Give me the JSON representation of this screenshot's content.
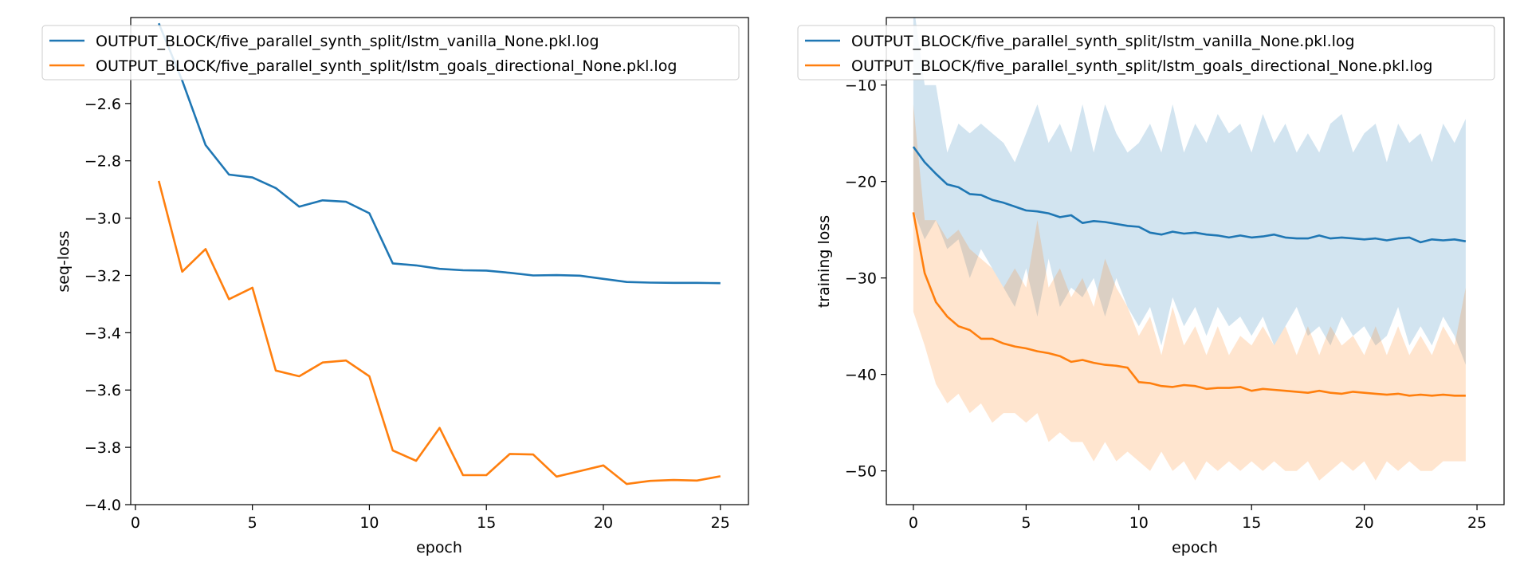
{
  "colors": {
    "series0": "#1f77b4",
    "series1": "#ff7f0e",
    "band0": "#1f77b4",
    "band1": "#ff7f0e"
  },
  "chart_data": [
    {
      "type": "line",
      "xlabel": "epoch",
      "ylabel": "seq-loss",
      "xlim": [
        -0.2,
        26.2
      ],
      "ylim": [
        -4.0,
        -2.3
      ],
      "xticks": [
        0,
        5,
        10,
        15,
        20,
        25
      ],
      "yticks": [
        -4.0,
        -3.8,
        -3.6,
        -3.4,
        -3.2,
        -3.0,
        -2.8,
        -2.6
      ],
      "ytick_labels": [
        "−4.0",
        "−3.8",
        "−3.6",
        "−3.4",
        "−3.2",
        "−3.0",
        "−2.8",
        "−2.6"
      ],
      "legend_position": "top",
      "series": [
        {
          "name": "OUTPUT_BLOCK/five_parallel_synth_split/lstm_vanilla_None.pkl.log",
          "x": [
            1,
            2,
            3,
            4,
            5,
            6,
            7,
            8,
            9,
            10,
            11,
            12,
            13,
            14,
            15,
            16,
            17,
            18,
            19,
            20,
            21,
            22,
            23,
            24,
            25
          ],
          "values": [
            -2.32,
            -2.52,
            -2.745,
            -2.848,
            -2.858,
            -2.895,
            -2.96,
            -2.938,
            -2.943,
            -2.983,
            -3.158,
            -3.165,
            -3.177,
            -3.182,
            -3.183,
            -3.191,
            -3.2,
            -3.199,
            -3.201,
            -3.212,
            -3.223,
            -3.225,
            -3.226,
            -3.226,
            -3.227
          ]
        },
        {
          "name": "OUTPUT_BLOCK/five_parallel_synth_split/lstm_goals_directional_None.pkl.log",
          "x": [
            1,
            2,
            3,
            4,
            5,
            6,
            7,
            8,
            9,
            10,
            11,
            12,
            13,
            14,
            15,
            16,
            17,
            18,
            19,
            20,
            21,
            22,
            23,
            24,
            25
          ],
          "values": [
            -2.87,
            -3.187,
            -3.108,
            -3.283,
            -3.243,
            -3.532,
            -3.552,
            -3.504,
            -3.497,
            -3.552,
            -3.811,
            -3.847,
            -3.732,
            -3.897,
            -3.897,
            -3.823,
            -3.825,
            -3.902,
            -3.883,
            -3.863,
            -3.928,
            -3.917,
            -3.914,
            -3.916,
            -3.901
          ]
        }
      ]
    },
    {
      "type": "line",
      "xlabel": "epoch",
      "ylabel": "training loss",
      "xlim": [
        -1.2,
        26.2
      ],
      "ylim": [
        -53.5,
        -3.0
      ],
      "xticks": [
        0,
        5,
        10,
        15,
        20,
        25
      ],
      "yticks": [
        -50,
        -40,
        -30,
        -20,
        -10
      ],
      "ytick_labels": [
        "−50",
        "−40",
        "−30",
        "−20",
        "−10"
      ],
      "legend_position": "top",
      "series": [
        {
          "name": "OUTPUT_BLOCK/five_parallel_synth_split/lstm_vanilla_None.pkl.log",
          "x": [
            0,
            0.5,
            1,
            1.5,
            2,
            2.5,
            3,
            3.5,
            4,
            4.5,
            5,
            5.5,
            6,
            6.5,
            7,
            7.5,
            8,
            8.5,
            9,
            9.5,
            10,
            10.5,
            11,
            11.5,
            12,
            12.5,
            13,
            13.5,
            14,
            14.5,
            15,
            15.5,
            16,
            16.5,
            17,
            17.5,
            18,
            18.5,
            19,
            19.5,
            20,
            20.5,
            21,
            21.5,
            22,
            22.5,
            23,
            23.5,
            24,
            24.5
          ],
          "values": [
            -16.4,
            -18,
            -19.2,
            -20.3,
            -20.6,
            -21.3,
            -21.4,
            -21.9,
            -22.2,
            -22.6,
            -23.0,
            -23.1,
            -23.3,
            -23.7,
            -23.5,
            -24.3,
            -24.1,
            -24.2,
            -24.4,
            -24.6,
            -24.7,
            -25.3,
            -25.5,
            -25.2,
            -25.4,
            -25.3,
            -25.5,
            -25.6,
            -25.8,
            -25.6,
            -25.8,
            -25.7,
            -25.5,
            -25.8,
            -25.9,
            -25.9,
            -25.6,
            -25.9,
            -25.8,
            -25.9,
            -26.0,
            -25.9,
            -26.1,
            -25.9,
            -25.8,
            -26.3,
            -26.0,
            -26.1,
            -26.0,
            -26.2
          ],
          "upper": [
            -1.5,
            -10,
            -10,
            -17,
            -14,
            -15,
            -14,
            -15,
            -16,
            -18,
            -15,
            -12,
            -16,
            -14,
            -17,
            -12,
            -17,
            -12,
            -15,
            -17,
            -16,
            -14,
            -17,
            -12,
            -17,
            -14,
            -16,
            -13,
            -15,
            -14,
            -17,
            -13,
            -16,
            -14,
            -17,
            -15,
            -17,
            -14,
            -13,
            -17,
            -15,
            -14,
            -18,
            -14,
            -16,
            -15,
            -18,
            -14,
            -16,
            -13.5
          ],
          "lower": [
            -23,
            -26,
            -24,
            -27,
            -26,
            -30,
            -27,
            -29,
            -31,
            -33,
            -29,
            -34,
            -28,
            -33,
            -31,
            -32,
            -30,
            -34,
            -30,
            -33,
            -35,
            -33,
            -37,
            -32,
            -35,
            -33,
            -36,
            -33,
            -35,
            -34,
            -36,
            -34,
            -37,
            -35,
            -33,
            -36,
            -35,
            -37,
            -34,
            -36,
            -35,
            -37,
            -36,
            -33,
            -37,
            -35,
            -37,
            -34,
            -36,
            -39
          ]
        },
        {
          "name": "OUTPUT_BLOCK/five_parallel_synth_split/lstm_goals_directional_None.pkl.log",
          "x": [
            0,
            0.5,
            1,
            1.5,
            2,
            2.5,
            3,
            3.5,
            4,
            4.5,
            5,
            5.5,
            6,
            6.5,
            7,
            7.5,
            8,
            8.5,
            9,
            9.5,
            10,
            10.5,
            11,
            11.5,
            12,
            12.5,
            13,
            13.5,
            14,
            14.5,
            15,
            15.5,
            16,
            16.5,
            17,
            17.5,
            18,
            18.5,
            19,
            19.5,
            20,
            20.5,
            21,
            21.5,
            22,
            22.5,
            23,
            23.5,
            24,
            24.5
          ],
          "values": [
            -23.2,
            -29.5,
            -32.5,
            -34,
            -35,
            -35.4,
            -36.3,
            -36.3,
            -36.8,
            -37.1,
            -37.3,
            -37.6,
            -37.8,
            -38.1,
            -38.7,
            -38.5,
            -38.8,
            -39.0,
            -39.1,
            -39.3,
            -40.8,
            -40.9,
            -41.2,
            -41.3,
            -41.1,
            -41.2,
            -41.5,
            -41.4,
            -41.4,
            -41.3,
            -41.7,
            -41.5,
            -41.6,
            -41.7,
            -41.8,
            -41.9,
            -41.7,
            -41.9,
            -42.0,
            -41.8,
            -41.9,
            -42.0,
            -42.1,
            -42.0,
            -42.2,
            -42.1,
            -42.2,
            -42.1,
            -42.2,
            -42.2
          ],
          "upper": [
            -12,
            -24,
            -24,
            -26,
            -25,
            -27,
            -28,
            -29,
            -31,
            -29,
            -31,
            -24,
            -31,
            -29,
            -32,
            -30,
            -33,
            -28,
            -31,
            -33,
            -36,
            -34,
            -38,
            -33,
            -37,
            -35,
            -38,
            -35,
            -38,
            -36,
            -37,
            -35,
            -37,
            -35,
            -38,
            -35,
            -38,
            -35,
            -37,
            -36,
            -38,
            -35,
            -38,
            -35,
            -38,
            -36,
            -38,
            -35,
            -37,
            -31
          ],
          "lower": [
            -33.5,
            -37,
            -41,
            -43,
            -42,
            -44,
            -43,
            -45,
            -44,
            -44,
            -45,
            -44,
            -47,
            -46,
            -47,
            -47,
            -49,
            -47,
            -49,
            -48,
            -49,
            -50,
            -48,
            -50,
            -49,
            -51,
            -49,
            -50,
            -49,
            -50,
            -49,
            -50,
            -49,
            -50,
            -50,
            -49,
            -51,
            -50,
            -49,
            -50,
            -49,
            -51,
            -49,
            -50,
            -49,
            -50,
            -50,
            -49,
            -49,
            -49
          ]
        }
      ]
    }
  ]
}
